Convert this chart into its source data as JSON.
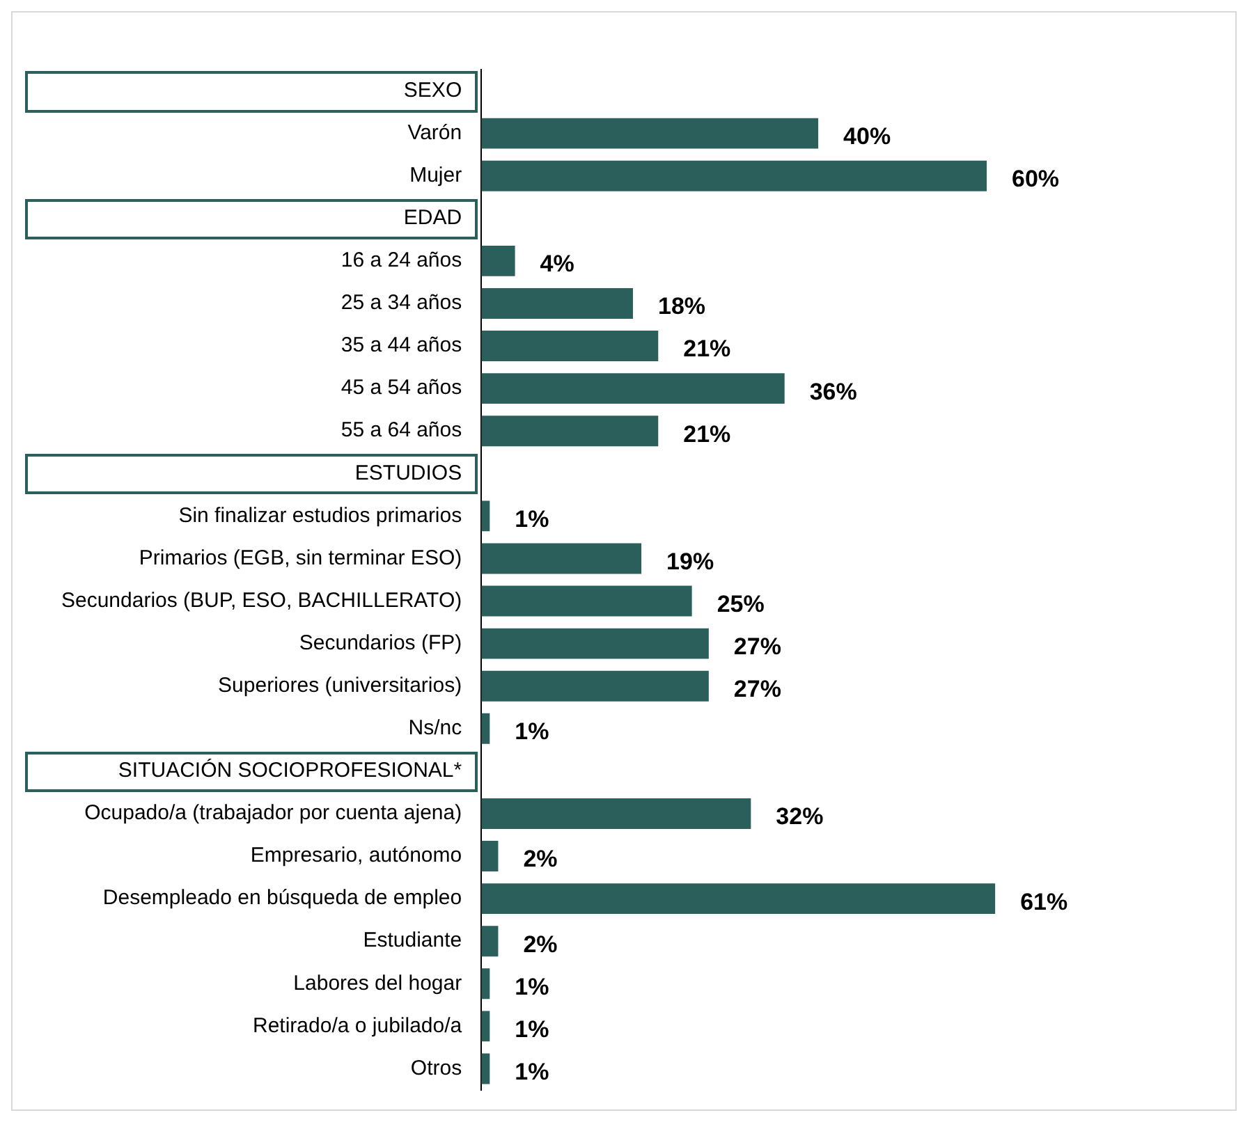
{
  "chart_data": {
    "type": "bar",
    "orientation": "horizontal",
    "color": "#2b5f5b",
    "grid": false,
    "legend": false,
    "tick_labels": "y",
    "categories": [
      "SEXO",
      "Varón",
      "Mujer",
      "EDAD",
      "16 a 24 años",
      "25 a 34 años",
      "35 a 44 años",
      "45 a 54 años",
      "55 a 64 años",
      "ESTUDIOS",
      "Sin finalizar estudios primarios",
      "Primarios (EGB, sin terminar ESO)",
      "Secundarios (BUP, ESO, BACHILLERATO)",
      "Secundarios (FP)",
      "Superiores (universitarios)",
      "Ns/nc",
      "SITUACIÓN SOCIOPROFESIONAL*",
      "Ocupado/a (trabajador por cuenta ajena)",
      "Empresario, autónomo",
      "Desempleado en búsqueda de empleo",
      "Estudiante",
      "Labores del hogar",
      "Retirado/a o jubilado/a",
      "Otros"
    ],
    "values": [
      null,
      40,
      60,
      null,
      4,
      18,
      21,
      36,
      21,
      null,
      1,
      19,
      25,
      27,
      27,
      1,
      null,
      32,
      2,
      61,
      2,
      1,
      1,
      1
    ],
    "value_labels": [
      null,
      "40%",
      "60%",
      null,
      "4%",
      "18%",
      "21%",
      "36%",
      "21%",
      null,
      "1%",
      "19%",
      "25%",
      "27%",
      "27%",
      "1%",
      null,
      "32%",
      "2%",
      "61%",
      "2%",
      "1%",
      "1%",
      "1%"
    ]
  }
}
